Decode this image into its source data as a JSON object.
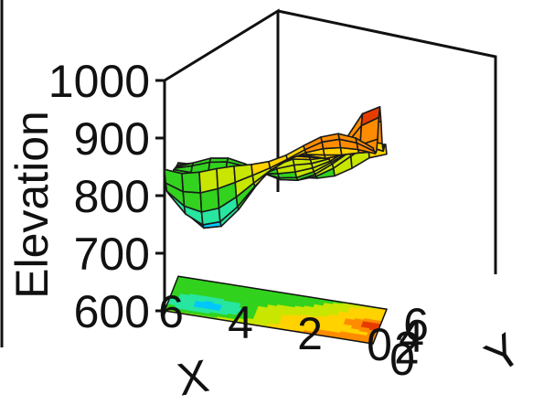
{
  "chart_data": {
    "type": "surface3d",
    "zlabel": "Elevation",
    "xlabel": "X",
    "ylabel": "Y",
    "zlim": [
      600,
      1000
    ],
    "xlim": [
      0,
      6
    ],
    "ylim": [
      0,
      6
    ],
    "z_ticks": [
      "1000",
      "900",
      "800",
      "700",
      "600"
    ],
    "x_ticks": [
      "6",
      "4",
      "2",
      "0"
    ],
    "y_ticks": [
      "0",
      "2",
      "4",
      "6"
    ],
    "colormap": [
      "#1a3cff",
      "#00c8ff",
      "#27e6a0",
      "#32d21e",
      "#c8e600",
      "#ffd200",
      "#ff8c00",
      "#e63c00"
    ],
    "contour_projection": true,
    "grid_resolution": 13,
    "description_of_surface": {
      "min_elevation": 680,
      "min_location": [
        5,
        1.5
      ],
      "peak_elevation": 990,
      "peak_location": [
        0.2,
        3
      ],
      "secondary_rise_elevation": 960,
      "secondary_rise_location": [
        0,
        5.5
      ],
      "base_elevation_far_side": 930,
      "base_elevation_near_x": 800
    }
  }
}
